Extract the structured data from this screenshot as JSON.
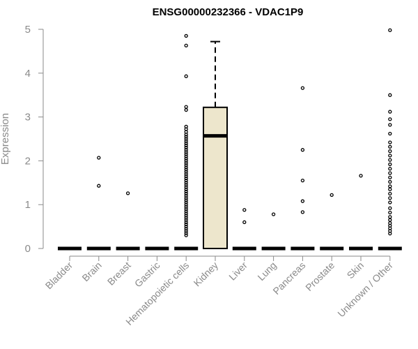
{
  "chart_data": {
    "type": "box",
    "title": "ENSG00000232366 - VDAC1P9",
    "xlabel": "",
    "ylabel": "Expression",
    "ylim": [
      0,
      5
    ],
    "yticks": [
      0,
      1,
      2,
      3,
      4,
      5
    ],
    "grid": false,
    "box_fill": "#ede6cc",
    "categories": [
      "Bladder",
      "Brain",
      "Breast",
      "Gastric",
      "Hematopoietic cells",
      "Kidney",
      "Liver",
      "Lung",
      "Pancreas",
      "Prostate",
      "Skin",
      "Unknown / Other"
    ],
    "boxes": [
      {
        "category": "Bladder",
        "min": 0,
        "q1": 0,
        "median": 0,
        "q3": 0,
        "max": 0,
        "outliers": []
      },
      {
        "category": "Brain",
        "min": 0,
        "q1": 0,
        "median": 0,
        "q3": 0,
        "max": 0,
        "outliers": [
          1.43,
          2.07
        ]
      },
      {
        "category": "Breast",
        "min": 0,
        "q1": 0,
        "median": 0,
        "q3": 0,
        "max": 0,
        "outliers": [
          1.26
        ]
      },
      {
        "category": "Gastric",
        "min": 0,
        "q1": 0,
        "median": 0,
        "q3": 0,
        "max": 0,
        "outliers": []
      },
      {
        "category": "Hematopoietic cells",
        "min": 0,
        "q1": 0,
        "median": 0,
        "q3": 0,
        "max": 0,
        "outliers": [
          4.85,
          4.63,
          3.93,
          3.23,
          3.16,
          2.78,
          2.72,
          2.66,
          2.6,
          2.55,
          2.5,
          2.45,
          2.4,
          2.35,
          2.3,
          2.25,
          2.2,
          2.15,
          2.1,
          2.05,
          2.0,
          1.95,
          1.9,
          1.85,
          1.8,
          1.75,
          1.7,
          1.65,
          1.6,
          1.55,
          1.5,
          1.45,
          1.4,
          1.35,
          1.3,
          1.25,
          1.2,
          1.15,
          1.1,
          1.05,
          1.0,
          0.95,
          0.9,
          0.85,
          0.8,
          0.75,
          0.7,
          0.65,
          0.6,
          0.55,
          0.5,
          0.45,
          0.4,
          0.35,
          0.3
        ]
      },
      {
        "category": "Kidney",
        "min": 0,
        "q1": 0,
        "median": 2.57,
        "q3": 3.22,
        "max": 4.72,
        "outliers": []
      },
      {
        "category": "Liver",
        "min": 0,
        "q1": 0,
        "median": 0,
        "q3": 0,
        "max": 0,
        "outliers": [
          0.88,
          0.6
        ]
      },
      {
        "category": "Lung",
        "min": 0,
        "q1": 0,
        "median": 0,
        "q3": 0,
        "max": 0,
        "outliers": [
          0.78
        ]
      },
      {
        "category": "Pancreas",
        "min": 0,
        "q1": 0,
        "median": 0,
        "q3": 0,
        "max": 0,
        "outliers": [
          3.66,
          2.25,
          1.55,
          1.08,
          0.83
        ]
      },
      {
        "category": "Prostate",
        "min": 0,
        "q1": 0,
        "median": 0,
        "q3": 0,
        "max": 0,
        "outliers": [
          1.22
        ]
      },
      {
        "category": "Skin",
        "min": 0,
        "q1": 0,
        "median": 0,
        "q3": 0,
        "max": 0,
        "outliers": [
          1.66
        ]
      },
      {
        "category": "Unknown / Other",
        "min": 0,
        "q1": 0,
        "median": 0,
        "q3": 0,
        "max": 0,
        "outliers": [
          4.98,
          3.5,
          3.12,
          2.95,
          2.82,
          2.62,
          2.42,
          2.32,
          2.22,
          2.12,
          2.02,
          1.92,
          1.82,
          1.72,
          1.62,
          1.52,
          1.42,
          1.35,
          1.25,
          1.15,
          1.05,
          0.92,
          0.82,
          0.72,
          0.65,
          0.58,
          0.52,
          0.46,
          0.4,
          0.34
        ]
      }
    ]
  }
}
